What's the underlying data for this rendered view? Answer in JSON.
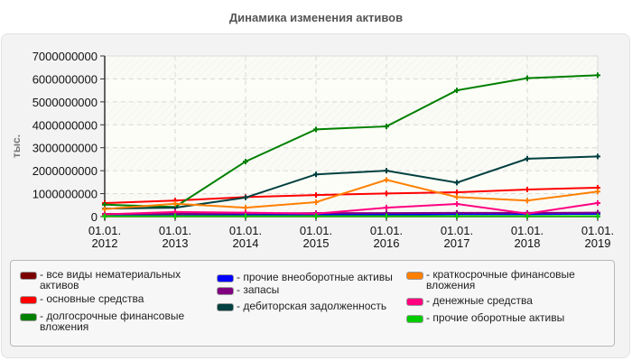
{
  "title": "Динамика изменения активов",
  "chart_data": {
    "type": "line",
    "title": "Динамика изменения активов",
    "xlabel": "",
    "ylabel": "тыс.",
    "ylim": [
      0,
      7000000000
    ],
    "yticks": [
      "0",
      "1000000000",
      "2000000000",
      "3000000000",
      "4000000000",
      "5000000000",
      "6000000000",
      "7000000000"
    ],
    "categories": [
      "01.01.\n2012",
      "01.01.\n2013",
      "01.01.\n2014",
      "01.01.\n2015",
      "01.01.\n2016",
      "01.01.\n2017",
      "01.01.\n2018",
      "01.01.\n2019"
    ],
    "grid": true,
    "legend_position": "bottom",
    "series": [
      {
        "name": "все виды нематериальных активов",
        "color": "#7a0000",
        "values": [
          10000000,
          10000000,
          10000000,
          10000000,
          10000000,
          10000000,
          10000000,
          10000000
        ]
      },
      {
        "name": "основные средства",
        "color": "#ff0000",
        "values": [
          590000000,
          700000000,
          850000000,
          940000000,
          1010000000,
          1060000000,
          1180000000,
          1260000000
        ]
      },
      {
        "name": "долгосрочные финансовые вложения",
        "color": "#008000",
        "values": [
          520000000,
          420000000,
          2400000000,
          3800000000,
          3930000000,
          5500000000,
          6030000000,
          6160000000
        ]
      },
      {
        "name": "прочие внеоборотные активы",
        "color": "#0000ff",
        "values": [
          60000000,
          60000000,
          80000000,
          80000000,
          90000000,
          110000000,
          110000000,
          120000000
        ]
      },
      {
        "name": "запасы",
        "color": "#800080",
        "values": [
          120000000,
          120000000,
          140000000,
          150000000,
          150000000,
          160000000,
          160000000,
          170000000
        ]
      },
      {
        "name": "дебиторская задолженность",
        "color": "#004040",
        "values": [
          350000000,
          390000000,
          830000000,
          1840000000,
          2000000000,
          1480000000,
          2520000000,
          2620000000
        ]
      },
      {
        "name": "краткосрочные финансовые вложения",
        "color": "#ff8000",
        "values": [
          330000000,
          560000000,
          390000000,
          630000000,
          1600000000,
          850000000,
          700000000,
          1090000000
        ]
      },
      {
        "name": "денежные средства",
        "color": "#ff0080",
        "values": [
          100000000,
          200000000,
          170000000,
          130000000,
          390000000,
          550000000,
          130000000,
          590000000
        ]
      },
      {
        "name": "прочие оборотные активы",
        "color": "#00cc00",
        "values": [
          20000000,
          20000000,
          20000000,
          20000000,
          20000000,
          20000000,
          20000000,
          20000000
        ]
      }
    ]
  },
  "legend": {
    "items": [
      {
        "label": "- все виды нематериальных\nактивов",
        "color": "#7a0000"
      },
      {
        "label": "- основные средства",
        "color": "#ff0000"
      },
      {
        "label": "- долгосрочные финансовые\nвложения",
        "color": "#008000"
      },
      {
        "label": "- прочие внеоборотные активы",
        "color": "#0000ff"
      },
      {
        "label": "- запасы",
        "color": "#800080"
      },
      {
        "label": "- дебиторская задолженность",
        "color": "#004040"
      },
      {
        "label": "- краткосрочные финансовые\nвложения",
        "color": "#ff8000"
      },
      {
        "label": "- денежные средства",
        "color": "#ff0080"
      },
      {
        "label": "- прочие оборотные активы",
        "color": "#00cc00"
      }
    ]
  }
}
